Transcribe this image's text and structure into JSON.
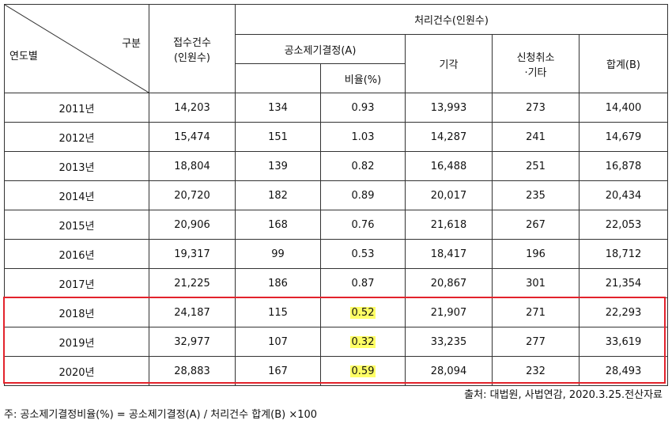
{
  "header": {
    "category": "구분",
    "year_label": "연도별",
    "received": "접수건수\n(인원수)",
    "processed": "처리건수(인원수)",
    "decision_a": "공소제기결정(A)",
    "ratio": "비율(%)",
    "dismissed": "기각",
    "withdrawn": "신청취소\n·기타",
    "total_b": "합계(B)"
  },
  "rows": [
    {
      "year": "2011년",
      "received": "14,203",
      "decision": "134",
      "ratio": "0.93",
      "dismissed": "13,993",
      "withdrawn": "273",
      "total": "14,400"
    },
    {
      "year": "2012년",
      "received": "15,474",
      "decision": "151",
      "ratio": "1.03",
      "dismissed": "14,287",
      "withdrawn": "241",
      "total": "14,679"
    },
    {
      "year": "2013년",
      "received": "18,804",
      "decision": "139",
      "ratio": "0.82",
      "dismissed": "16,488",
      "withdrawn": "251",
      "total": "16,878"
    },
    {
      "year": "2014년",
      "received": "20,720",
      "decision": "182",
      "ratio": "0.89",
      "dismissed": "20,017",
      "withdrawn": "235",
      "total": "20,434"
    },
    {
      "year": "2015년",
      "received": "20,906",
      "decision": "168",
      "ratio": "0.76",
      "dismissed": "21,618",
      "withdrawn": "267",
      "total": "22,053"
    },
    {
      "year": "2016년",
      "received": "19,317",
      "decision": "99",
      "ratio": "0.53",
      "dismissed": "18,417",
      "withdrawn": "196",
      "total": "18,712"
    },
    {
      "year": "2017년",
      "received": "21,225",
      "decision": "186",
      "ratio": "0.87",
      "dismissed": "20,867",
      "withdrawn": "301",
      "total": "21,354"
    },
    {
      "year": "2018년",
      "received": "24,187",
      "decision": "115",
      "ratio": "0.52",
      "dismissed": "21,907",
      "withdrawn": "271",
      "total": "22,293"
    },
    {
      "year": "2019년",
      "received": "32,977",
      "decision": "107",
      "ratio": "0.32",
      "dismissed": "33,235",
      "withdrawn": "277",
      "total": "33,619"
    },
    {
      "year": "2020년",
      "received": "28,883",
      "decision": "167",
      "ratio": "0.59",
      "dismissed": "28,094",
      "withdrawn": "232",
      "total": "28,493"
    }
  ],
  "source_note": "출처: 대법원, 사법연감, 2020.3.25.전산자료",
  "formula_note": "주: 공소제기결정비율(%) = 공소제기결정(A) / 처리건수 합계(B) ×100",
  "colors": {
    "highlight_box": "#e3232c",
    "highlight_fill": "#ffff66"
  }
}
